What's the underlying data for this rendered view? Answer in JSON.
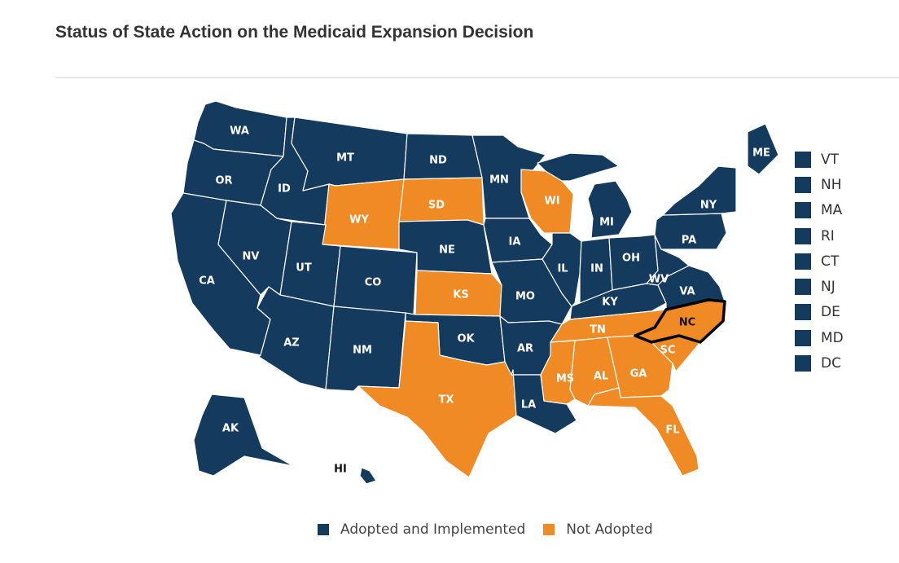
{
  "title": "Status of State Action on the Medicaid Expansion Decision",
  "colors": {
    "adopted": "#143a5e",
    "not_adopted": "#f08a24",
    "border": "#ffffff",
    "highlight": "#000000"
  },
  "legend": [
    {
      "label": "Adopted and Implemented",
      "status": "adopted"
    },
    {
      "label": "Not Adopted",
      "status": "not_adopted"
    }
  ],
  "states": [
    {
      "abbr": "WA",
      "status": "adopted"
    },
    {
      "abbr": "OR",
      "status": "adopted"
    },
    {
      "abbr": "CA",
      "status": "adopted"
    },
    {
      "abbr": "ID",
      "status": "adopted"
    },
    {
      "abbr": "NV",
      "status": "adopted"
    },
    {
      "abbr": "MT",
      "status": "adopted"
    },
    {
      "abbr": "WY",
      "status": "not_adopted"
    },
    {
      "abbr": "UT",
      "status": "adopted"
    },
    {
      "abbr": "CO",
      "status": "adopted"
    },
    {
      "abbr": "AZ",
      "status": "adopted"
    },
    {
      "abbr": "NM",
      "status": "adopted"
    },
    {
      "abbr": "ND",
      "status": "adopted"
    },
    {
      "abbr": "SD",
      "status": "not_adopted"
    },
    {
      "abbr": "NE",
      "status": "adopted"
    },
    {
      "abbr": "KS",
      "status": "not_adopted"
    },
    {
      "abbr": "OK",
      "status": "adopted"
    },
    {
      "abbr": "TX",
      "status": "not_adopted"
    },
    {
      "abbr": "MN",
      "status": "adopted"
    },
    {
      "abbr": "IA",
      "status": "adopted"
    },
    {
      "abbr": "MO",
      "status": "adopted"
    },
    {
      "abbr": "AR",
      "status": "adopted"
    },
    {
      "abbr": "LA",
      "status": "adopted"
    },
    {
      "abbr": "WI",
      "status": "not_adopted"
    },
    {
      "abbr": "IL",
      "status": "adopted"
    },
    {
      "abbr": "MI",
      "status": "adopted"
    },
    {
      "abbr": "IN",
      "status": "adopted"
    },
    {
      "abbr": "OH",
      "status": "adopted"
    },
    {
      "abbr": "KY",
      "status": "adopted"
    },
    {
      "abbr": "TN",
      "status": "not_adopted"
    },
    {
      "abbr": "MS",
      "status": "not_adopted"
    },
    {
      "abbr": "AL",
      "status": "not_adopted"
    },
    {
      "abbr": "GA",
      "status": "not_adopted"
    },
    {
      "abbr": "FL",
      "status": "not_adopted"
    },
    {
      "abbr": "SC",
      "status": "not_adopted"
    },
    {
      "abbr": "NC",
      "status": "not_adopted",
      "highlighted": true
    },
    {
      "abbr": "VA",
      "status": "adopted"
    },
    {
      "abbr": "WV",
      "status": "adopted"
    },
    {
      "abbr": "PA",
      "status": "adopted"
    },
    {
      "abbr": "NY",
      "status": "adopted"
    },
    {
      "abbr": "ME",
      "status": "adopted"
    },
    {
      "abbr": "AK",
      "status": "adopted"
    },
    {
      "abbr": "HI",
      "status": "adopted"
    }
  ],
  "small_states": [
    {
      "abbr": "VT",
      "status": "adopted"
    },
    {
      "abbr": "NH",
      "status": "adopted"
    },
    {
      "abbr": "MA",
      "status": "adopted"
    },
    {
      "abbr": "RI",
      "status": "adopted"
    },
    {
      "abbr": "CT",
      "status": "adopted"
    },
    {
      "abbr": "NJ",
      "status": "adopted"
    },
    {
      "abbr": "DE",
      "status": "adopted"
    },
    {
      "abbr": "MD",
      "status": "adopted"
    },
    {
      "abbr": "DC",
      "status": "adopted"
    }
  ]
}
